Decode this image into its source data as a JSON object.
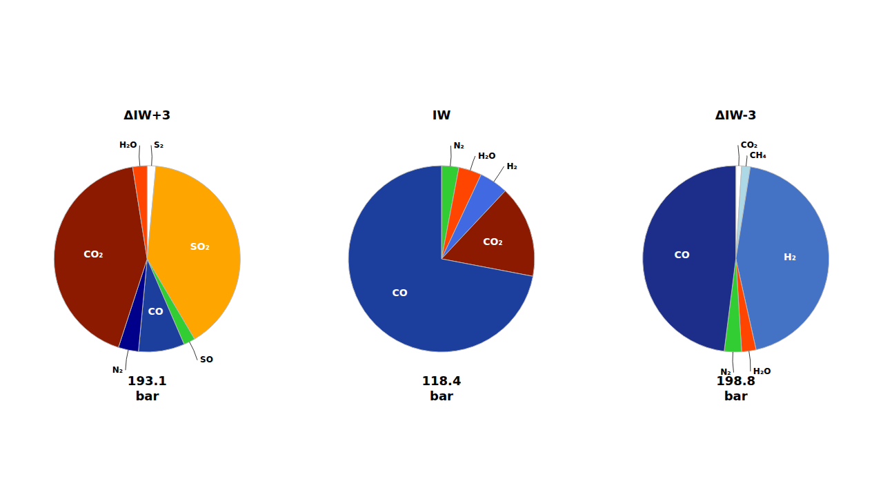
{
  "chart_data": [
    {
      "type": "pie",
      "title": "ΔIW+3",
      "annotations": [
        "193.1\nbar"
      ],
      "categories": [
        "S₂",
        "SO₂",
        "SO",
        "CO",
        "N₂",
        "CO₂",
        "H₂O"
      ],
      "values": [
        1.5,
        40.0,
        2.0,
        8.0,
        3.5,
        42.5,
        2.5
      ],
      "colors": [
        "#FFFFFE",
        "#FFA500",
        "#32CD32",
        "#1C3F9E",
        "#00008B",
        "#8B1A00",
        "#FF4500"
      ]
    },
    {
      "type": "pie",
      "title": "IW",
      "annotations": [
        "118.4\nbar"
      ],
      "categories": [
        "N₂",
        "H₂O",
        "H₂",
        "CO₂",
        "CO"
      ],
      "values": [
        3.0,
        4.0,
        5.0,
        16.0,
        72.0
      ],
      "colors": [
        "#32CD32",
        "#FF4500",
        "#4169E1",
        "#8B1A00",
        "#1C3F9E"
      ]
    },
    {
      "type": "pie",
      "title": "ΔIW-3",
      "annotations": [
        "198.8\nbar"
      ],
      "categories": [
        "CO₂",
        "CH₄",
        "H₂",
        "H₂O",
        "N₂",
        "CO"
      ],
      "values": [
        1.0,
        1.5,
        44.0,
        2.5,
        3.0,
        48.0
      ],
      "colors": [
        "#FFFFFE",
        "#ADD8E6",
        "#4472C4",
        "#FF4500",
        "#32CD32",
        "#1C2E8A"
      ]
    }
  ]
}
